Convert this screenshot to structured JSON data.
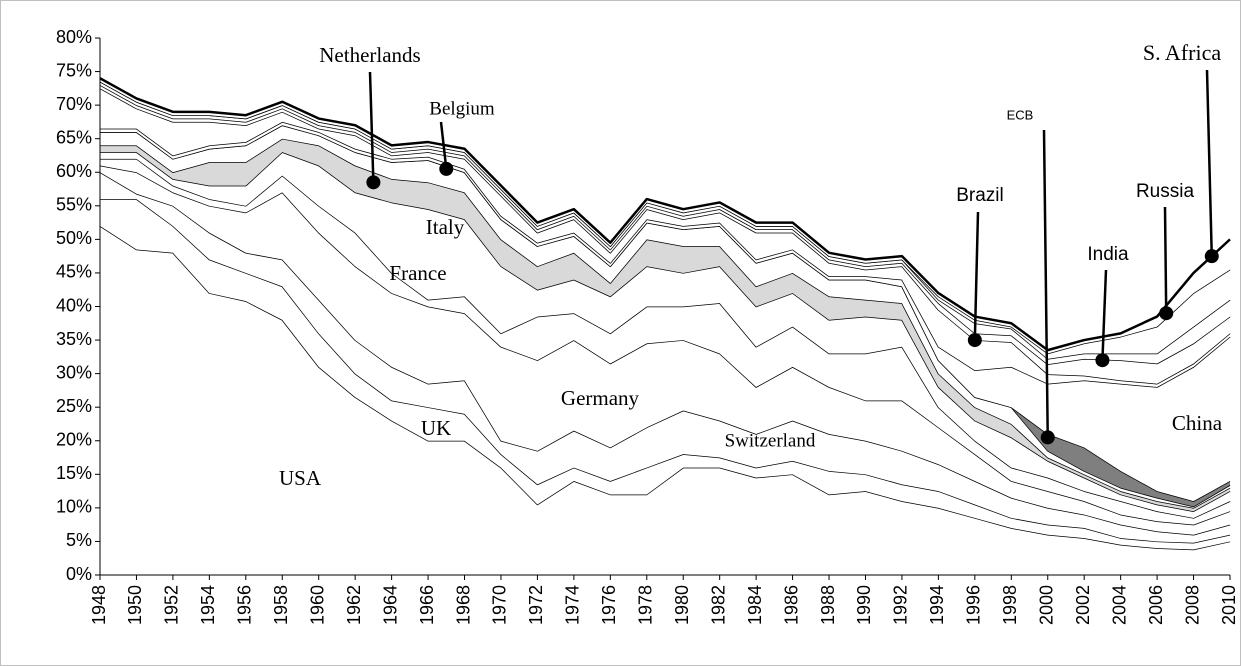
{
  "chart_data": {
    "type": "stacked_area",
    "x": [
      1948,
      1950,
      1952,
      1954,
      1956,
      1958,
      1960,
      1962,
      1964,
      1966,
      1968,
      1970,
      1972,
      1974,
      1976,
      1978,
      1980,
      1982,
      1984,
      1986,
      1988,
      1990,
      1992,
      1994,
      1996,
      1998,
      2000,
      2002,
      2004,
      2006,
      2008,
      2010
    ],
    "xlim": [
      1948,
      2010
    ],
    "xticks": [
      1948,
      1950,
      1952,
      1954,
      1956,
      1958,
      1960,
      1962,
      1964,
      1966,
      1968,
      1970,
      1972,
      1974,
      1976,
      1978,
      1980,
      1982,
      1984,
      1986,
      1988,
      1990,
      1992,
      1994,
      1996,
      1998,
      2000,
      2002,
      2004,
      2006,
      2008,
      2010
    ],
    "ylim": [
      0,
      80
    ],
    "yticks": [
      {
        "value": 0,
        "label": "0%"
      },
      {
        "value": 5,
        "label": "5%"
      },
      {
        "value": 10,
        "label": "10%"
      },
      {
        "value": 15,
        "label": "15%"
      },
      {
        "value": 20,
        "label": "20%"
      },
      {
        "value": 25,
        "label": "25%"
      },
      {
        "value": 30,
        "label": "30%"
      },
      {
        "value": 35,
        "label": "35%"
      },
      {
        "value": 40,
        "label": "40%"
      },
      {
        "value": 45,
        "label": "45%"
      },
      {
        "value": 50,
        "label": "50%"
      },
      {
        "value": 55,
        "label": "55%"
      },
      {
        "value": 60,
        "label": "60%"
      },
      {
        "value": 65,
        "label": "65%"
      },
      {
        "value": 70,
        "label": "70%"
      },
      {
        "value": 75,
        "label": "75%"
      },
      {
        "value": 80,
        "label": "80%"
      }
    ],
    "series": [
      {
        "name": "USA",
        "color": "#ffffff",
        "values": [
          52,
          48.5,
          48,
          42,
          40.8,
          38,
          31,
          26.5,
          23,
          20,
          20,
          16,
          10.5,
          14,
          12,
          12,
          16,
          16,
          14.5,
          15,
          12,
          12.5,
          11,
          10,
          8.5,
          7,
          6,
          5.5,
          4.5,
          4,
          3.8,
          5
        ]
      },
      {
        "name": "UK",
        "color": "#ffffff",
        "values": [
          4,
          7.5,
          4,
          5,
          4.2,
          5,
          5,
          3.5,
          3,
          5,
          4,
          2,
          3,
          2,
          2,
          4,
          2,
          1.5,
          1.5,
          2,
          3.5,
          2.5,
          2.5,
          2.5,
          2,
          1.5,
          1.5,
          1.5,
          1,
          1,
          1,
          1
        ]
      },
      {
        "name": "Switzerland",
        "color": "#ffffff",
        "values": [
          4,
          0.8,
          3,
          4,
          3,
          4,
          5,
          5,
          5,
          3.5,
          5,
          2,
          5,
          5.5,
          5,
          6,
          6.5,
          5.5,
          5,
          6,
          5.5,
          5,
          5,
          4,
          3.5,
          3,
          2.5,
          2,
          2,
          1.5,
          1.2,
          1.5
        ]
      },
      {
        "name": "Germany",
        "color": "#ffffff",
        "values": [
          1,
          3.2,
          2,
          4,
          6,
          10,
          10,
          11,
          11,
          11.5,
          10,
          14,
          13.5,
          13.5,
          12.5,
          12.5,
          10.5,
          10,
          7,
          8,
          7,
          6,
          7.5,
          5.5,
          4,
          2.5,
          2.5,
          2,
          1.5,
          1.5,
          1.5,
          2
        ]
      },
      {
        "name": "France",
        "color": "#ffffff",
        "values": [
          1,
          2,
          1,
          1,
          1,
          2.5,
          4,
          5,
          3,
          1,
          2.5,
          2,
          6.5,
          4,
          4.5,
          5.5,
          5,
          7.5,
          6,
          6,
          5,
          7,
          8,
          3,
          2,
          2,
          2,
          1.5,
          2,
          1.5,
          1,
          1.5
        ]
      },
      {
        "name": "Italy",
        "color": "#ffffff",
        "values": [
          1,
          1,
          1,
          2,
          3,
          3.5,
          6,
          6,
          10.5,
          13.5,
          11.5,
          10,
          4,
          5,
          5.5,
          6,
          5,
          5.5,
          6,
          5,
          5,
          5.5,
          4,
          3,
          3,
          4.5,
          2.5,
          2,
          1,
          1,
          1,
          1.5
        ]
      },
      {
        "name": "Netherlands",
        "color": "#d9d9d9",
        "values": [
          1,
          1,
          1,
          3.5,
          3.5,
          2,
          3,
          4,
          3.5,
          4,
          4,
          4,
          3.5,
          4,
          2,
          4,
          4,
          3,
          3,
          3,
          3.5,
          2.5,
          2.5,
          2,
          2,
          2,
          0.5,
          0.5,
          0.5,
          0.5,
          0.5,
          0.5
        ]
      },
      {
        "name": "Belgium",
        "color": "#ffffff",
        "values": [
          2,
          2,
          2,
          2,
          2.5,
          2,
          1.5,
          2,
          2.5,
          3.3,
          3,
          3,
          3,
          2.5,
          2.5,
          2.5,
          2.5,
          3,
          3.5,
          3,
          2.5,
          3,
          2.5,
          2,
          1.5,
          2.5,
          1,
          0.5,
          0.5,
          0.5,
          0.2,
          0.4
        ]
      },
      {
        "name": "ECB",
        "color": "#7f7f7f",
        "values": [
          0,
          0,
          0,
          0,
          0,
          0,
          0,
          0,
          0,
          0,
          0,
          0,
          0,
          0,
          0,
          0,
          0,
          0,
          0,
          0,
          0,
          0,
          0,
          0,
          0,
          0,
          2.5,
          3.5,
          2.5,
          1,
          0.8,
          0.6
        ]
      },
      {
        "name": "China",
        "color": "#ffffff",
        "values": [
          0.5,
          0.5,
          0.5,
          0.5,
          0.5,
          0.5,
          0.5,
          0.5,
          0.5,
          0.5,
          0.5,
          0.5,
          0.5,
          0.5,
          0.5,
          0.5,
          0.5,
          0.5,
          0.5,
          0.5,
          0.5,
          0.5,
          1,
          2,
          4,
          6,
          7.5,
          10,
          13,
          15.5,
          20,
          21.5
        ]
      },
      {
        "name": null,
        "color": "#ffffff",
        "values": [
          6,
          3,
          5,
          3.5,
          2.5,
          1.5,
          0.5,
          2,
          0.5,
          0.7,
          1.5,
          3,
          1.5,
          2,
          1.5,
          1.5,
          1,
          1.5,
          4,
          2.5,
          2,
          1,
          2,
          5.5,
          4.5,
          3.7,
          1.4,
          0.7,
          0.5,
          0.5,
          0.5,
          0.5
        ]
      },
      {
        "name": "India",
        "color": "#ffffff",
        "values": [
          0.5,
          0.5,
          0.5,
          0.5,
          0.5,
          0.5,
          0.5,
          0.5,
          0.5,
          0.5,
          0.5,
          0.5,
          0.5,
          0.5,
          0.5,
          0.5,
          0.5,
          0.5,
          0.5,
          0.5,
          0.5,
          0.5,
          0.5,
          1,
          1,
          1,
          1.5,
          2.5,
          3,
          3,
          3,
          2.5
        ]
      },
      {
        "name": "Brazil",
        "color": "#ffffff",
        "values": [
          0.5,
          0.5,
          0.5,
          0.5,
          0.5,
          0.5,
          0.5,
          0.5,
          0.5,
          0.5,
          0.5,
          0.5,
          0.5,
          0.5,
          0.5,
          0.5,
          0.5,
          0.5,
          0.5,
          0.5,
          0.5,
          0.5,
          0.5,
          0.5,
          1.5,
          1,
          0.8,
          0.8,
          1,
          1.5,
          2.5,
          2.5
        ]
      },
      {
        "name": "Russia",
        "color": "#ffffff",
        "values": [
          0,
          0,
          0,
          0,
          0,
          0,
          0,
          0,
          0,
          0,
          0,
          0,
          0,
          0,
          0,
          0,
          0,
          0,
          0,
          0,
          0,
          0,
          0,
          0.5,
          0.5,
          0.3,
          0.8,
          1.5,
          2.5,
          4,
          5,
          4.5
        ]
      },
      {
        "name": "S. Africa",
        "color": "#ffffff",
        "values": [
          0.5,
          0.5,
          0.5,
          0.5,
          0.5,
          0.5,
          0.5,
          0.5,
          0.5,
          0.5,
          0.5,
          0.5,
          0.5,
          0.5,
          0.5,
          0.5,
          0.5,
          0.5,
          0.5,
          0.5,
          0.5,
          0.5,
          0.5,
          0.5,
          0.5,
          0.5,
          0.5,
          0.5,
          0.5,
          1.5,
          3,
          4.5
        ]
      }
    ]
  }
}
